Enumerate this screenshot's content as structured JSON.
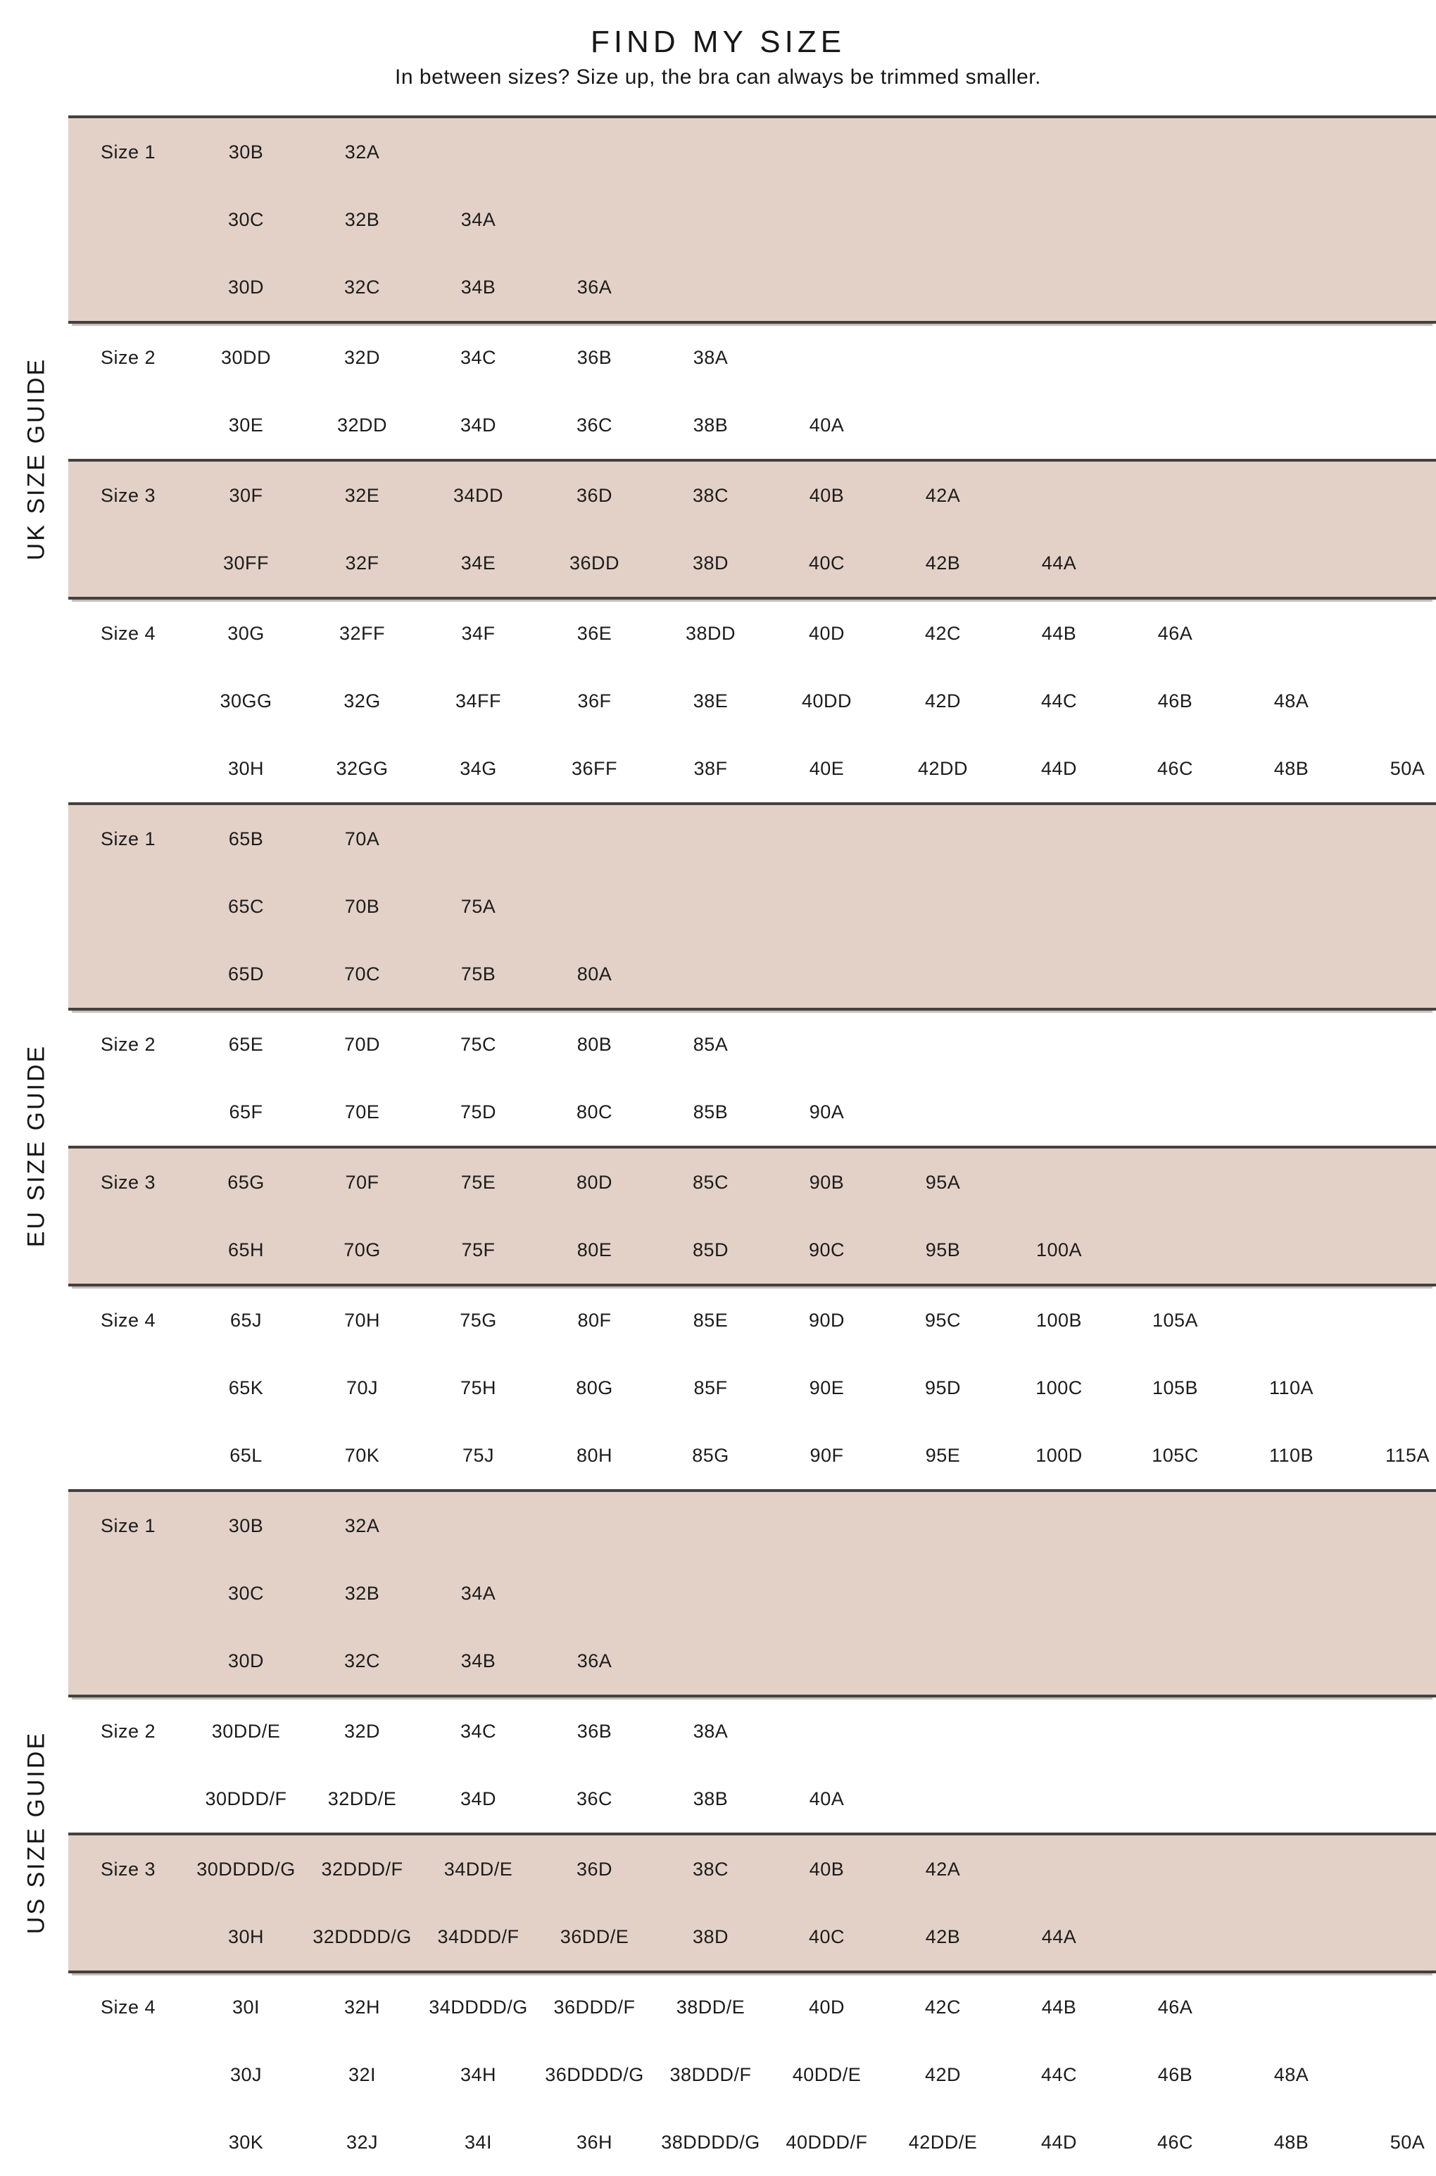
{
  "header": {
    "title": "FIND MY SIZE",
    "subtitle": "In between sizes? Size up, the bra can always be trimmed smaller."
  },
  "colors": {
    "tint_background": "#e3d1c8",
    "dark_rule": "#44403d",
    "light_rule": "#c3beba",
    "text": "#1c1c1c"
  },
  "sections": [
    {
      "label": "UK SIZE GUIDE",
      "groups": [
        {
          "tinted": true,
          "size_label": "Size 1",
          "rows": [
            [
              "30B",
              "32A"
            ],
            [
              "30C",
              "32B",
              "34A"
            ],
            [
              "30D",
              "32C",
              "34B",
              "36A"
            ]
          ]
        },
        {
          "tinted": false,
          "size_label": "Size 2",
          "rows": [
            [
              "30DD",
              "32D",
              "34C",
              "36B",
              "38A"
            ],
            [
              "30E",
              "32DD",
              "34D",
              "36C",
              "38B",
              "40A"
            ]
          ]
        },
        {
          "tinted": true,
          "size_label": "Size 3",
          "rows": [
            [
              "30F",
              "32E",
              "34DD",
              "36D",
              "38C",
              "40B",
              "42A"
            ],
            [
              "30FF",
              "32F",
              "34E",
              "36DD",
              "38D",
              "40C",
              "42B",
              "44A"
            ]
          ]
        },
        {
          "tinted": false,
          "size_label": "Size 4",
          "rows": [
            [
              "30G",
              "32FF",
              "34F",
              "36E",
              "38DD",
              "40D",
              "42C",
              "44B",
              "46A"
            ],
            [
              "30GG",
              "32G",
              "34FF",
              "36F",
              "38E",
              "40DD",
              "42D",
              "44C",
              "46B",
              "48A"
            ],
            [
              "30H",
              "32GG",
              "34G",
              "36FF",
              "38F",
              "40E",
              "42DD",
              "44D",
              "46C",
              "48B",
              "50A"
            ]
          ]
        }
      ]
    },
    {
      "label": "EU SIZE GUIDE",
      "groups": [
        {
          "tinted": true,
          "size_label": "Size 1",
          "rows": [
            [
              "65B",
              "70A"
            ],
            [
              "65C",
              "70B",
              "75A"
            ],
            [
              "65D",
              "70C",
              "75B",
              "80A"
            ]
          ]
        },
        {
          "tinted": false,
          "size_label": "Size 2",
          "rows": [
            [
              "65E",
              "70D",
              "75C",
              "80B",
              "85A"
            ],
            [
              "65F",
              "70E",
              "75D",
              "80C",
              "85B",
              "90A"
            ]
          ]
        },
        {
          "tinted": true,
          "size_label": "Size 3",
          "rows": [
            [
              "65G",
              "70F",
              "75E",
              "80D",
              "85C",
              "90B",
              "95A"
            ],
            [
              "65H",
              "70G",
              "75F",
              "80E",
              "85D",
              "90C",
              "95B",
              "100A"
            ]
          ]
        },
        {
          "tinted": false,
          "size_label": "Size 4",
          "rows": [
            [
              "65J",
              "70H",
              "75G",
              "80F",
              "85E",
              "90D",
              "95C",
              "100B",
              "105A"
            ],
            [
              "65K",
              "70J",
              "75H",
              "80G",
              "85F",
              "90E",
              "95D",
              "100C",
              "105B",
              "110A"
            ],
            [
              "65L",
              "70K",
              "75J",
              "80H",
              "85G",
              "90F",
              "95E",
              "100D",
              "105C",
              "110B",
              "115A"
            ]
          ]
        }
      ]
    },
    {
      "label": "US SIZE GUIDE",
      "groups": [
        {
          "tinted": true,
          "size_label": "Size 1",
          "rows": [
            [
              "30B",
              "32A"
            ],
            [
              "30C",
              "32B",
              "34A"
            ],
            [
              "30D",
              "32C",
              "34B",
              "36A"
            ]
          ]
        },
        {
          "tinted": false,
          "size_label": "Size 2",
          "rows": [
            [
              "30DD/E",
              "32D",
              "34C",
              "36B",
              "38A"
            ],
            [
              "30DDD/F",
              "32DD/E",
              "34D",
              "36C",
              "38B",
              "40A"
            ]
          ]
        },
        {
          "tinted": true,
          "size_label": "Size 3",
          "rows": [
            [
              "30DDDD/G",
              "32DDD/F",
              "34DD/E",
              "36D",
              "38C",
              "40B",
              "42A"
            ],
            [
              "30H",
              "32DDDD/G",
              "34DDD/F",
              "36DD/E",
              "38D",
              "40C",
              "42B",
              "44A"
            ]
          ]
        },
        {
          "tinted": false,
          "size_label": "Size 4",
          "rows": [
            [
              "30I",
              "32H",
              "34DDDD/G",
              "36DDD/F",
              "38DD/E",
              "40D",
              "42C",
              "44B",
              "46A"
            ],
            [
              "30J",
              "32I",
              "34H",
              "36DDDD/G",
              "38DDD/F",
              "40DD/E",
              "42D",
              "44C",
              "46B",
              "48A"
            ],
            [
              "30K",
              "32J",
              "34I",
              "36H",
              "38DDDD/G",
              "40DDD/F",
              "42DD/E",
              "44D",
              "46C",
              "48B",
              "50A"
            ]
          ]
        }
      ]
    }
  ]
}
